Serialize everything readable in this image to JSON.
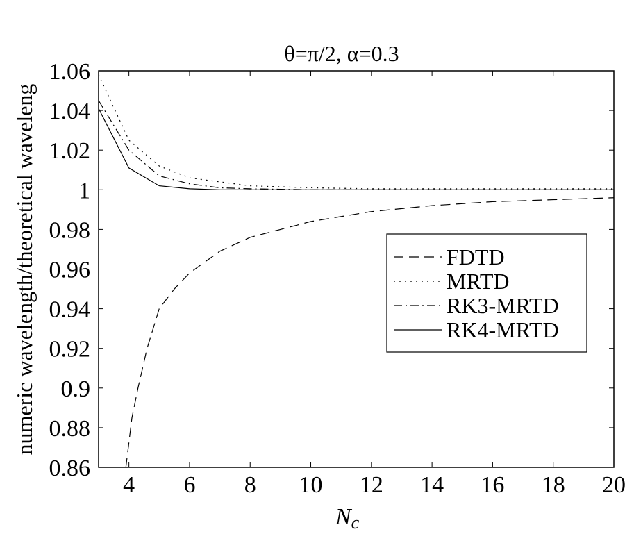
{
  "chart_data": {
    "type": "line",
    "title": "θ=π/2, α=0.3",
    "xlabel": "N",
    "xlabel_sub": "c",
    "ylabel": "numeric wavelength/theoretical waveleng",
    "xlim": [
      3,
      20
    ],
    "ylim": [
      0.86,
      1.06
    ],
    "xticks": [
      4,
      6,
      8,
      10,
      12,
      14,
      16,
      18,
      20
    ],
    "yticks": [
      0.86,
      0.88,
      0.9,
      0.92,
      0.94,
      0.96,
      0.98,
      1,
      1.02,
      1.04,
      1.06
    ],
    "ytick_labels": [
      "0.86",
      "0.88",
      "0.9",
      "0.92",
      "0.94",
      "0.96",
      "0.98",
      "1",
      "1.02",
      "1.04",
      "1.06"
    ],
    "legend_position": "center-right",
    "series": [
      {
        "name": "FDTD",
        "dash": "14,8",
        "x": [
          3.9,
          4.1,
          4.3,
          4.6,
          5,
          5.5,
          6,
          7,
          8,
          9,
          10,
          12,
          14,
          16,
          18,
          20
        ],
        "y": [
          0.86,
          0.885,
          0.9,
          0.92,
          0.94,
          0.95,
          0.958,
          0.969,
          0.976,
          0.98,
          0.984,
          0.989,
          0.992,
          0.994,
          0.995,
          0.996
        ]
      },
      {
        "name": "MRTD",
        "dash": "2,6",
        "x": [
          3,
          4,
          5,
          6,
          7,
          8,
          10,
          12,
          20
        ],
        "y": [
          1.058,
          1.025,
          1.012,
          1.006,
          1.004,
          1.002,
          1.001,
          1.0005,
          1.0005
        ]
      },
      {
        "name": "RK3-MRTD",
        "dash": "12,5,2,5",
        "x": [
          3,
          4,
          5,
          6,
          7,
          8,
          10,
          20
        ],
        "y": [
          1.045,
          1.02,
          1.007,
          1.003,
          1.001,
          1.0005,
          1.0,
          1.0
        ]
      },
      {
        "name": "RK4-MRTD",
        "dash": "",
        "x": [
          3,
          4,
          5,
          6,
          7,
          8,
          20
        ],
        "y": [
          1.041,
          1.011,
          1.002,
          1.0005,
          1.0,
          1.0,
          1.0
        ]
      }
    ]
  }
}
